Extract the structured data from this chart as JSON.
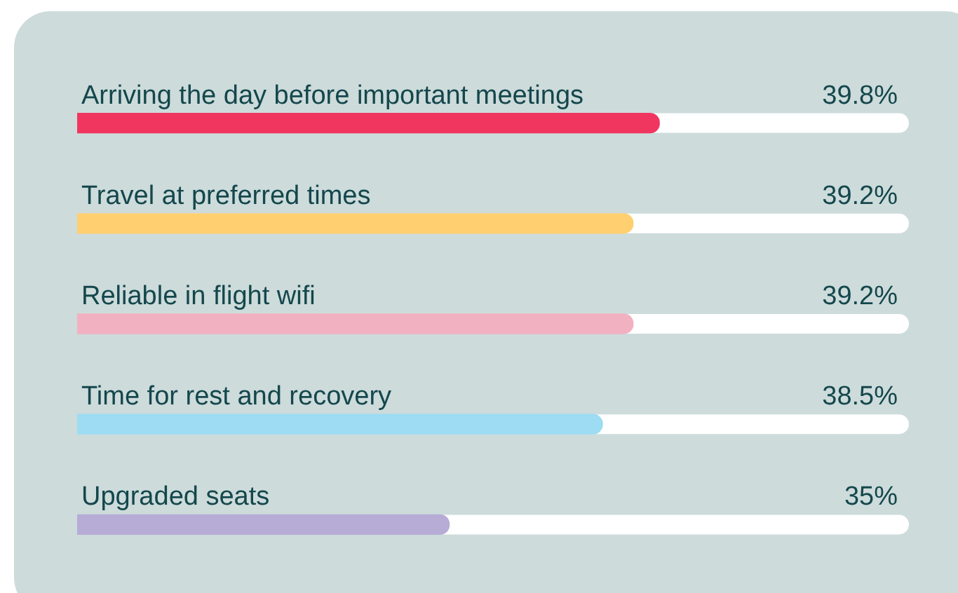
{
  "chart_data": {
    "type": "bar",
    "orientation": "horizontal",
    "categories": [
      "Arriving the day before important meetings",
      "Travel at preferred times",
      "Reliable in flight wifi",
      "Time for rest and recovery",
      "Upgraded seats"
    ],
    "values": [
      39.8,
      39.2,
      39.2,
      38.5,
      35
    ],
    "colors": [
      "#f0365f",
      "#ffcf70",
      "#f2b1c0",
      "#9ddcf2",
      "#b6acd6"
    ],
    "value_labels": [
      "39.8%",
      "39.2%",
      "39.2%",
      "38.5%",
      "35%"
    ],
    "xlim": [
      26.5,
      45.5
    ],
    "tick_labels": false
  }
}
